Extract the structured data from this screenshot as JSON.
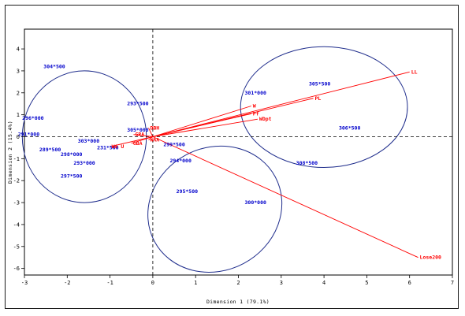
{
  "chart_data": {
    "type": "scatter",
    "subtype": "biplot",
    "xlabel": "Dimension 1 (79.1%)",
    "ylabel": "Dimension 2 (15.4%)",
    "xlim": [
      -3,
      7
    ],
    "ylim": [
      -6.3,
      4.9
    ],
    "xticks": [
      -3,
      -2,
      -1,
      0,
      1,
      2,
      3,
      4,
      5,
      6,
      7
    ],
    "yticks": [
      4,
      3,
      2,
      1,
      0,
      -1,
      -2,
      -3,
      -4,
      -5,
      -6
    ],
    "reference_lines": {
      "x": 0,
      "y": 0,
      "style": "dashed"
    },
    "colors": {
      "observations": "#0000cc",
      "variables": "#ff0000",
      "ellipses": "#1f2d8c",
      "axes": "#000000"
    },
    "observations": [
      {
        "label": "304*500",
        "x": -2.3,
        "y": 3.2
      },
      {
        "label": "296*000",
        "x": -2.8,
        "y": 0.85
      },
      {
        "label": "291*000",
        "x": -2.9,
        "y": 0.1
      },
      {
        "label": "303*000",
        "x": -1.5,
        "y": -0.2
      },
      {
        "label": "289*500",
        "x": -2.4,
        "y": -0.6
      },
      {
        "label": "298*000",
        "x": -1.9,
        "y": -0.8
      },
      {
        "label": "293*000",
        "x": -1.6,
        "y": -1.2
      },
      {
        "label": "297*500",
        "x": -1.9,
        "y": -1.8
      },
      {
        "label": "231*500",
        "x": -1.05,
        "y": -0.5
      },
      {
        "label": "293*500",
        "x": -0.35,
        "y": 1.5
      },
      {
        "label": "305*000",
        "x": -0.35,
        "y": 0.3
      },
      {
        "label": "299*500",
        "x": 0.5,
        "y": -0.35
      },
      {
        "label": "294*000",
        "x": 0.65,
        "y": -1.1
      },
      {
        "label": "295*500",
        "x": 0.8,
        "y": -2.5
      },
      {
        "label": "300*000",
        "x": 2.4,
        "y": -3.0
      },
      {
        "label": "301*000",
        "x": 2.4,
        "y": 2.0
      },
      {
        "label": "305*500",
        "x": 3.9,
        "y": 2.4
      },
      {
        "label": "306*500",
        "x": 4.6,
        "y": 0.4
      },
      {
        "label": "308*500",
        "x": 3.6,
        "y": -1.2
      }
    ],
    "variables": [
      {
        "label": "LL",
        "x": 6.0,
        "y": 2.95
      },
      {
        "label": "PL",
        "x": 3.75,
        "y": 1.75
      },
      {
        "label": "W",
        "x": 2.3,
        "y": 1.4
      },
      {
        "label": "Pf",
        "x": 2.3,
        "y": 1.05
      },
      {
        "label": "WDpt",
        "x": 2.45,
        "y": 0.8
      },
      {
        "label": "Lose200",
        "x": 6.2,
        "y": -5.5
      },
      {
        "label": "DBH",
        "x": -0.1,
        "y": 0.4
      },
      {
        "label": "GRA",
        "x": -0.45,
        "y": 0.1
      },
      {
        "label": "WAA",
        "x": -0.1,
        "y": -0.15
      },
      {
        "label": "GBA",
        "x": -0.5,
        "y": -0.3
      },
      {
        "label": "WA U",
        "x": -1.0,
        "y": -0.45
      }
    ],
    "ellipses": [
      {
        "cx": -1.6,
        "cy": 0.0,
        "rx": 1.45,
        "ry": 3.0,
        "angle_deg": 0
      },
      {
        "cx": 4.0,
        "cy": 1.35,
        "rx": 1.95,
        "ry": 2.75,
        "angle_deg": 0
      },
      {
        "cx": 1.45,
        "cy": -3.3,
        "rx": 1.6,
        "ry": 2.8,
        "angle_deg": 28
      }
    ]
  }
}
